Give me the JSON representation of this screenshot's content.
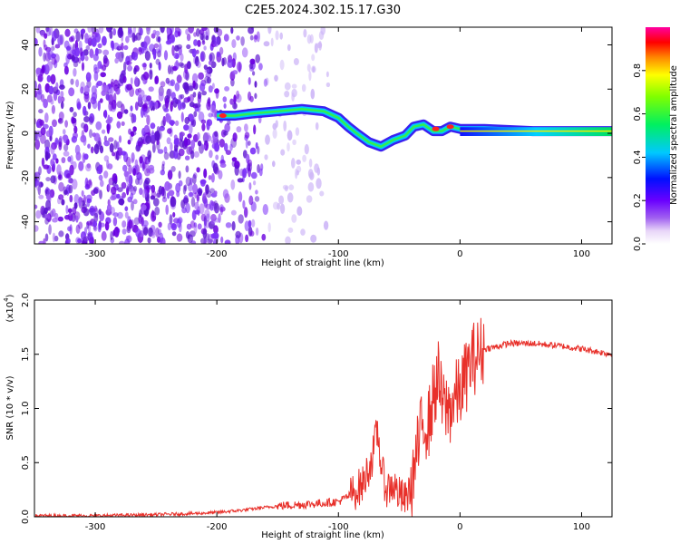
{
  "title": "C2E5.2024.302.15.17.G30",
  "chart_data": [
    {
      "type": "heatmap",
      "xlabel": "Height of straight line (km)",
      "ylabel": "Frequency (Hz)",
      "xlim": [
        -350,
        125
      ],
      "ylim": [
        -50,
        48
      ],
      "x_ticks": [
        -300,
        -200,
        -100,
        0,
        100
      ],
      "y_ticks": [
        -40,
        -20,
        0,
        20,
        40
      ],
      "colorbar": {
        "label": "Normalized spectral amplitude",
        "range": [
          0.0,
          1.0
        ],
        "ticks": [
          "0.0",
          "0.2",
          "0.4",
          "0.6",
          "0.8"
        ]
      },
      "ridge": {
        "x": [
          -200,
          -185,
          -170,
          -150,
          -130,
          -112,
          -100,
          -92,
          -85,
          -75,
          -65,
          -55,
          -45,
          -38,
          -30,
          -22,
          -15,
          -8,
          0,
          20,
          60,
          125
        ],
        "freq_hz": [
          8,
          8,
          9,
          10,
          11,
          10,
          7,
          3,
          0,
          -4,
          -6,
          -3,
          -1,
          3,
          4,
          1,
          1,
          3,
          2,
          2,
          1,
          1
        ]
      }
    },
    {
      "type": "line",
      "xlabel": "Height of straight line (km)",
      "ylabel": "SNR (10 * v/v)",
      "multiplier_label": "(x10",
      "multiplier_exponent": "4",
      "xlim": [
        -350,
        125
      ],
      "ylim": [
        0,
        2.0
      ],
      "x_ticks": [
        -300,
        -200,
        -100,
        0,
        100
      ],
      "y_ticks": [
        "0.0",
        "0.5",
        "1.0",
        "1.5",
        "2.0"
      ],
      "series": [
        {
          "name": "SNR",
          "color": "#e8302a",
          "x": [
            -350,
            -300,
            -250,
            -220,
            -200,
            -180,
            -150,
            -120,
            -100,
            -90,
            -80,
            -72,
            -68,
            -64,
            -60,
            -55,
            -50,
            -45,
            -40,
            -35,
            -30,
            -26,
            -22,
            -18,
            -15,
            -12,
            -8,
            -4,
            0,
            5,
            10,
            20,
            30,
            40,
            60,
            80,
            100,
            125
          ],
          "values": [
            0.01,
            0.01,
            0.02,
            0.03,
            0.04,
            0.06,
            0.1,
            0.12,
            0.14,
            0.2,
            0.3,
            0.55,
            0.8,
            0.4,
            0.25,
            0.3,
            0.2,
            0.15,
            0.3,
            0.6,
            0.9,
            0.85,
            1.1,
            1.3,
            1.05,
            1.0,
            1.0,
            1.1,
            1.15,
            1.3,
            1.45,
            1.55,
            1.57,
            1.6,
            1.6,
            1.58,
            1.55,
            1.5
          ]
        }
      ]
    }
  ]
}
